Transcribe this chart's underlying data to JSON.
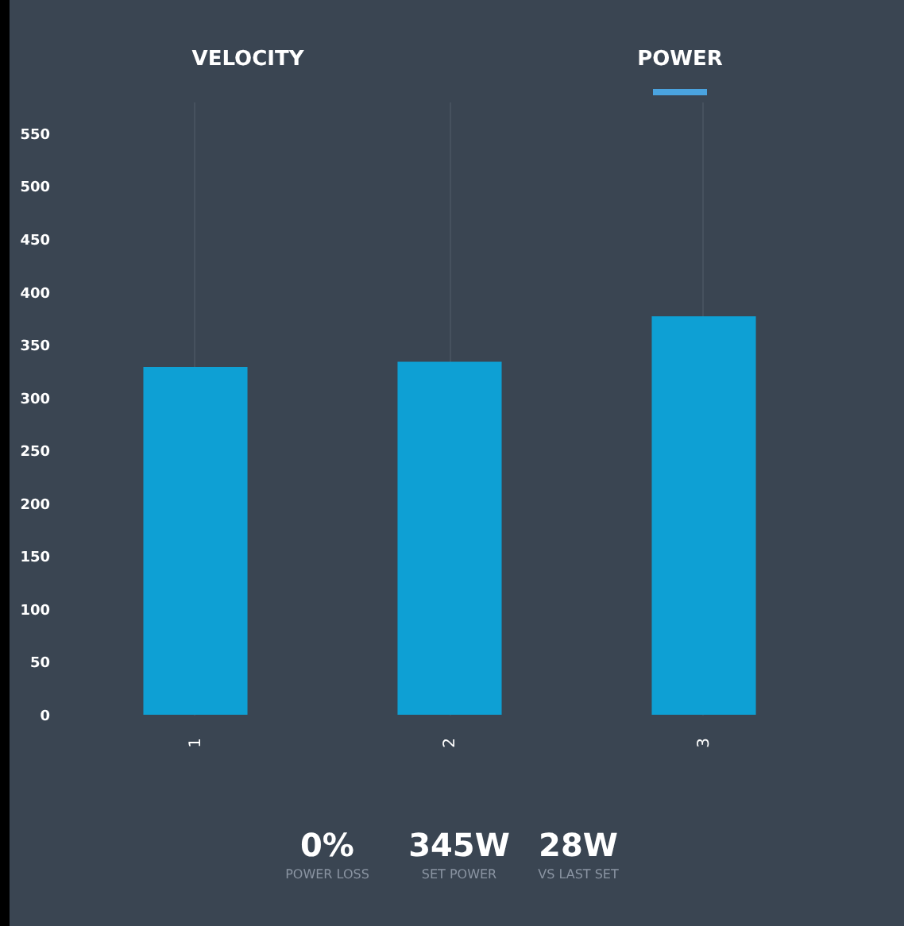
{
  "chart_data": {
    "type": "bar",
    "annotations": [
      "VELOCITY",
      "POWER",
      "0%",
      "POWER LOSS",
      "345W",
      "SET POWER",
      "28W",
      "VS LAST SET"
    ],
    "categories": [
      "1",
      "2",
      "3"
    ],
    "values": [
      329,
      334,
      377
    ],
    "color": "#0ea0d4",
    "ylim": [
      0,
      580
    ],
    "yticks": [
      0,
      50,
      100,
      150,
      200,
      250,
      300,
      350,
      400,
      450,
      500,
      550
    ],
    "grid": "x"
  }
}
